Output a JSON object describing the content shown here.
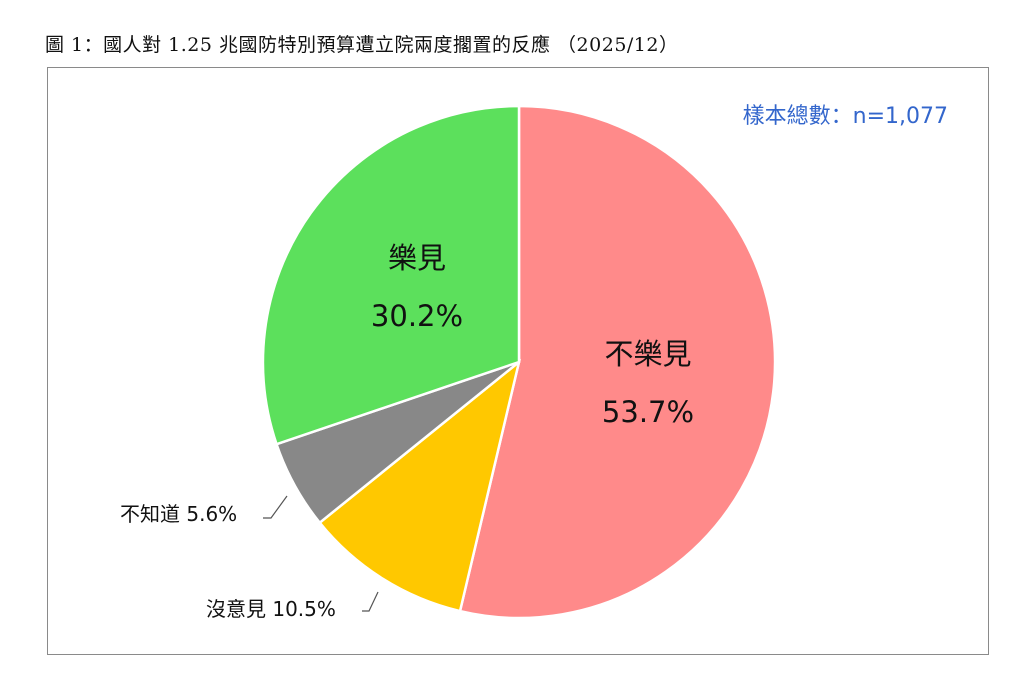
{
  "title": "圖 1：國人對 1.25 兆國防特別預算遭立院兩度擱置的反應 （2025/12）",
  "sample_label": "樣本總數：n=1,077",
  "chart_data": {
    "type": "pie",
    "title": "圖 1：國人對 1.25 兆國防特別預算遭立院兩度擱置的反應 （2025/12）",
    "slices": [
      {
        "label": "不樂見",
        "value": 53.7,
        "display": "53.7%",
        "color": "#ff8a8a"
      },
      {
        "label": "沒意見",
        "value": 10.5,
        "display": "10.5%",
        "color": "#ffc800"
      },
      {
        "label": "不知道",
        "value": 5.6,
        "display": "5.6%",
        "color": "#888888"
      },
      {
        "label": "樂見",
        "value": 30.2,
        "display": "30.2%",
        "color": "#5ce05c"
      }
    ]
  }
}
